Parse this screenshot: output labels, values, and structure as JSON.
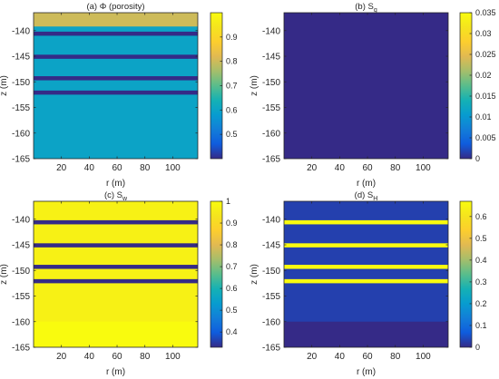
{
  "chart_data": [
    {
      "type": "heatmap",
      "title": "(a) Φ (porosity)",
      "xlabel": "r (m)",
      "ylabel": "z (m)",
      "xlim": [
        0,
        118
      ],
      "ylim": [
        -165,
        -136.5
      ],
      "xticks": [
        20,
        40,
        60,
        80,
        100
      ],
      "yticks": [
        -140,
        -145,
        -150,
        -155,
        -160,
        -165
      ],
      "background": 0.6,
      "bands": [
        {
          "z_top": -136.5,
          "z_bottom": -139.2,
          "value": 0.8
        },
        {
          "z_top": -140.2,
          "z_bottom": -141.0,
          "value": 0.4
        },
        {
          "z_top": -144.7,
          "z_bottom": -145.5,
          "value": 0.4
        },
        {
          "z_top": -148.9,
          "z_bottom": -149.7,
          "value": 0.4
        },
        {
          "z_top": -151.7,
          "z_bottom": -152.5,
          "value": 0.4
        }
      ],
      "colorbar": {
        "min": 0.4,
        "max": 1.0,
        "ticks": [
          0.5,
          0.6,
          0.7,
          0.8,
          0.9
        ]
      }
    },
    {
      "type": "heatmap",
      "title": "(b) S",
      "title_sub": "g",
      "xlabel": "r (m)",
      "ylabel": "z (m)",
      "xlim": [
        0,
        118
      ],
      "ylim": [
        -165,
        -136.5
      ],
      "xticks": [
        20,
        40,
        60,
        80,
        100
      ],
      "yticks": [
        -140,
        -145,
        -150,
        -155,
        -160,
        -165
      ],
      "background": 0.0,
      "bands": [],
      "colorbar": {
        "min": 0,
        "max": 0.035,
        "ticks": [
          0,
          0.005,
          0.01,
          0.015,
          0.02,
          0.025,
          0.03,
          0.035
        ]
      }
    },
    {
      "type": "heatmap",
      "title": "(c) S",
      "title_sub": "w",
      "xlabel": "r (m)",
      "ylabel": "z (m)",
      "xlim": [
        0,
        118
      ],
      "ylim": [
        -165,
        -136.5
      ],
      "xticks": [
        20,
        40,
        60,
        80,
        100
      ],
      "yticks": [
        -140,
        -145,
        -150,
        -155,
        -160,
        -165
      ],
      "background": 0.97,
      "bands": [
        {
          "z_top": -160.0,
          "z_bottom": -165,
          "value": 1.0
        },
        {
          "z_top": -140.2,
          "z_bottom": -141.0,
          "value": 0.33
        },
        {
          "z_top": -144.7,
          "z_bottom": -145.5,
          "value": 0.33
        },
        {
          "z_top": -148.9,
          "z_bottom": -149.7,
          "value": 0.33
        },
        {
          "z_top": -151.7,
          "z_bottom": -152.5,
          "value": 0.33
        }
      ],
      "colorbar": {
        "min": 0.33,
        "max": 1.0,
        "ticks": [
          0.4,
          0.5,
          0.6,
          0.7,
          0.8,
          0.9,
          1
        ]
      }
    },
    {
      "type": "heatmap",
      "title": "(d) S",
      "title_sub": "H",
      "xlabel": "r (m)",
      "ylabel": "z (m)",
      "xlim": [
        0,
        118
      ],
      "ylim": [
        -165,
        -136.5
      ],
      "xticks": [
        20,
        40,
        60,
        80,
        100
      ],
      "yticks": [
        -140,
        -145,
        -150,
        -155,
        -160,
        -165
      ],
      "background": 0.03,
      "bands": [
        {
          "z_top": -160.0,
          "z_bottom": -165,
          "value": 0.0
        },
        {
          "z_top": -140.2,
          "z_bottom": -141.0,
          "value": 0.67
        },
        {
          "z_top": -144.7,
          "z_bottom": -145.5,
          "value": 0.67
        },
        {
          "z_top": -148.9,
          "z_bottom": -149.7,
          "value": 0.67
        },
        {
          "z_top": -151.7,
          "z_bottom": -152.5,
          "value": 0.67
        }
      ],
      "colorbar": {
        "min": 0,
        "max": 0.67,
        "ticks": [
          0,
          0.1,
          0.2,
          0.3,
          0.4,
          0.5,
          0.6
        ]
      }
    }
  ]
}
